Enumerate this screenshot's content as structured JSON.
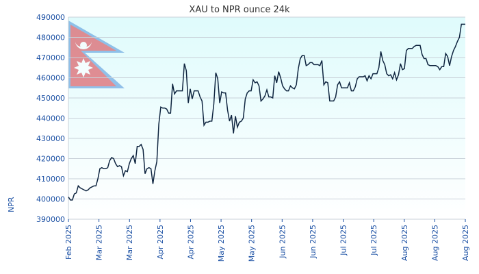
{
  "chart_data": {
    "type": "line",
    "title": "XAU to NPR ounce 24k",
    "xlabel": "",
    "ylabel": "NPR",
    "ylim": [
      390000,
      490000
    ],
    "yticks": [
      390000,
      400000,
      410000,
      420000,
      430000,
      440000,
      450000,
      460000,
      470000,
      480000,
      490000
    ],
    "ytick_labels": [
      "390000",
      "400000",
      "410000",
      "420000",
      "430000",
      "440000",
      "450000",
      "460000",
      "470000",
      "480000",
      "490000"
    ],
    "xtick_labels": [
      "Feb 2025",
      "Mar 2025",
      "Mar 2025",
      "Apr 2025",
      "Apr 2025",
      "May 2025",
      "May 2025",
      "Jun 2025",
      "Jun 2025",
      "Jul 2025",
      "Jul 2025",
      "Aug 2025",
      "Aug 2025",
      "Aug 2025"
    ],
    "grid": true,
    "line_color": "#0f2540",
    "background_gradient": [
      "#dffbfc",
      "#ffffff"
    ],
    "series": [
      {
        "name": "XAU/NPR",
        "values": [
          401000,
          399500,
          399500,
          402500,
          403000,
          406500,
          405500,
          405000,
          404500,
          404000,
          404500,
          405500,
          406000,
          406500,
          406500,
          410000,
          415000,
          415500,
          415000,
          415000,
          415500,
          419000,
          420500,
          420000,
          417500,
          416000,
          416500,
          416000,
          411500,
          414000,
          413500,
          417500,
          420000,
          421500,
          417500,
          426000,
          426000,
          427000,
          424500,
          412500,
          415000,
          415500,
          415000,
          407500,
          414000,
          418500,
          437000,
          445500,
          445000,
          445000,
          444500,
          442500,
          442500,
          457000,
          452000,
          453500,
          453500,
          453500,
          453500,
          467000,
          463500,
          447500,
          454500,
          449500,
          453500,
          453500,
          453500,
          450500,
          448500,
          436500,
          438000,
          438000,
          438500,
          438500,
          447000,
          462500,
          459500,
          447500,
          453000,
          452500,
          452500,
          444000,
          438500,
          441500,
          432500,
          441000,
          435500,
          438000,
          438500,
          440000,
          449500,
          452500,
          453500,
          453500,
          459000,
          457500,
          458000,
          456000,
          448500,
          449500,
          451000,
          454000,
          450500,
          450500,
          450000,
          461000,
          457500,
          463000,
          460000,
          456000,
          454500,
          453500,
          453500,
          456000,
          455000,
          454500,
          456500,
          464500,
          469500,
          471000,
          471000,
          466000,
          466500,
          467500,
          467500,
          466500,
          466500,
          466500,
          466000,
          468500,
          456500,
          458000,
          457500,
          448500,
          448500,
          448500,
          450500,
          456500,
          458000,
          455000,
          455000,
          455000,
          455000,
          457500,
          453500,
          453500,
          455500,
          459500,
          460500,
          460500,
          460500,
          461000,
          458500,
          461000,
          459500,
          462000,
          462000,
          462000,
          465000,
          473000,
          468500,
          466500,
          462000,
          461000,
          461500,
          459500,
          462500,
          459000,
          461500,
          467000,
          464000,
          464500,
          473500,
          474500,
          474500,
          474500,
          475500,
          476000,
          476000,
          476000,
          471500,
          469500,
          469500,
          466500,
          466000,
          466000,
          466000,
          466000,
          465500,
          464000,
          465500,
          465500,
          472000,
          470500,
          466000,
          470500,
          473500,
          475500,
          478000,
          480000,
          486500,
          486500,
          486500
        ]
      }
    ]
  }
}
